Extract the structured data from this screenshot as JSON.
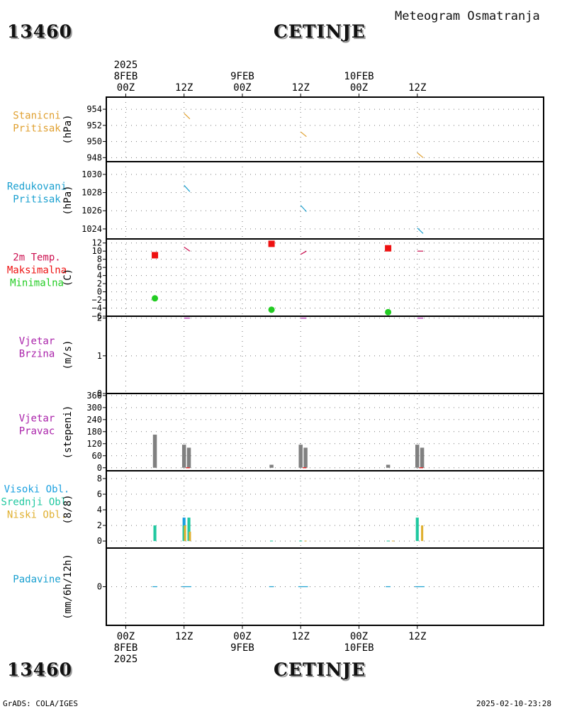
{
  "header": {
    "station_id": "13460",
    "station_name": "CETINJE",
    "meteogram_title": "Meteogram Osmatranja"
  },
  "footer": {
    "station_id": "13460",
    "station_name": "CETINJE",
    "credit": "GrADS: COLA/IGES",
    "timestamp": "2025-02-10-23:28"
  },
  "colors": {
    "station_pressure": "#e0a030",
    "reduced_pressure": "#1aa0d0",
    "temp": "#cc1050",
    "tmax": "#ee1111",
    "tmin": "#22cc22",
    "wind": "#aa22aa",
    "high_cloud": "#1aa0e0",
    "mid_cloud": "#20c8a0",
    "low_cloud": "#e0b030",
    "precip": "#1aa0d0",
    "grey_bar": "#808080"
  },
  "chart_data": {
    "type": "line",
    "x_axis": {
      "unit": "hours since 8FEB2025 00Z",
      "range": [
        -4,
        86
      ],
      "ticks": [
        {
          "x": 0,
          "top": [
            "2025",
            "8FEB",
            "00Z"
          ],
          "bottom": [
            "00Z",
            "8FEB",
            "2025"
          ]
        },
        {
          "x": 12,
          "top": [
            "12Z"
          ],
          "bottom": [
            "12Z"
          ]
        },
        {
          "x": 24,
          "top": [
            "9FEB",
            "00Z"
          ],
          "bottom": [
            "00Z",
            "9FEB"
          ]
        },
        {
          "x": 36,
          "top": [
            "12Z"
          ],
          "bottom": [
            "12Z"
          ]
        },
        {
          "x": 48,
          "top": [
            "10FEB",
            "00Z"
          ],
          "bottom": [
            "00Z",
            "10FEB"
          ]
        },
        {
          "x": 60,
          "top": [
            "12Z"
          ],
          "bottom": [
            "12Z"
          ]
        }
      ]
    },
    "panels": [
      {
        "id": "station_pressure",
        "label": [
          "Stanicni",
          "Pritisak"
        ],
        "label_colors": [
          "station_pressure",
          "station_pressure"
        ],
        "unit": "(hPa)",
        "ylim": [
          947.5,
          955.5
        ],
        "yticks": [
          "954",
          "952",
          "950",
          "948"
        ],
        "ytick_values": [
          954,
          952,
          950,
          948
        ],
        "series": [
          {
            "color": "station_pressure",
            "segments": [
              [
                [
                  12,
                  953.5
                ],
                [
                  13.2,
                  952.8
                ]
              ],
              [
                [
                  36,
                  951.2
                ],
                [
                  37.2,
                  950.6
                ]
              ],
              [
                [
                  60,
                  948.6
                ],
                [
                  61.2,
                  948
                ]
              ]
            ]
          }
        ]
      },
      {
        "id": "reduced_pressure",
        "label": [
          "Redukovani",
          "Pritisak"
        ],
        "label_colors": [
          "reduced_pressure",
          "reduced_pressure"
        ],
        "unit": "(hPa)",
        "ylim": [
          1022.9,
          1031.4
        ],
        "yticks": [
          "1030",
          "1028",
          "1026",
          "1024"
        ],
        "ytick_values": [
          1030,
          1028,
          1026,
          1024
        ],
        "series": [
          {
            "color": "reduced_pressure",
            "segments": [
              [
                [
                  12,
                  1028.8
                ],
                [
                  13.2,
                  1028.1
                ]
              ],
              [
                [
                  36,
                  1026.6
                ],
                [
                  37.2,
                  1025.9
                ]
              ],
              [
                [
                  60,
                  1024.1
                ],
                [
                  61.2,
                  1023.5
                ]
              ]
            ]
          }
        ]
      },
      {
        "id": "temperature",
        "label": [
          "2m Temp.",
          "Maksimalna",
          "Minimalna"
        ],
        "label_colors": [
          "temp",
          "tmax",
          "tmin"
        ],
        "unit": "(C)",
        "ylim": [
          -6,
          13
        ],
        "yticks": [
          "12",
          "10",
          "8",
          "6",
          "4",
          "2",
          "0",
          "−2",
          "−4",
          "−6"
        ],
        "ytick_values": [
          12,
          10,
          8,
          6,
          4,
          2,
          0,
          -2,
          -4,
          -6
        ],
        "series": [
          {
            "color": "temp",
            "segments": [
              [
                [
                  12,
                  11
                ],
                [
                  13.2,
                  10
                ]
              ],
              [
                [
                  36,
                  9.2
                ],
                [
                  37.2,
                  10
                ]
              ],
              [
                [
                  60,
                  10
                ],
                [
                  61.2,
                  10
                ]
              ]
            ]
          }
        ],
        "markers": [
          {
            "shape": "square",
            "color": "tmax",
            "points": [
              [
                6,
                9
              ],
              [
                30,
                11.8
              ],
              [
                54,
                10.7
              ]
            ]
          },
          {
            "shape": "circle",
            "color": "tmin",
            "points": [
              [
                6,
                -1.6
              ],
              [
                30,
                -4.4
              ],
              [
                54,
                -5
              ]
            ]
          }
        ]
      },
      {
        "id": "wind_speed",
        "label": [
          "Vjetar",
          "Brzina"
        ],
        "label_colors": [
          "wind",
          "wind"
        ],
        "unit": "(m/s)",
        "ylim": [
          0,
          2.05
        ],
        "yticks": [
          "2",
          "1",
          "0"
        ],
        "ytick_values": [
          2,
          1,
          0
        ],
        "series": [
          {
            "color": "wind",
            "segments": [
              [
                [
                  12,
                  2
                ],
                [
                  13.2,
                  2
                ]
              ],
              [
                [
                  36,
                  2
                ],
                [
                  37.2,
                  2
                ]
              ],
              [
                [
                  60,
                  2
                ],
                [
                  61.2,
                  2
                ]
              ]
            ]
          }
        ]
      },
      {
        "id": "wind_direction",
        "label": [
          "Vjetar",
          "Pravac"
        ],
        "label_colors": [
          "wind",
          "wind"
        ],
        "unit": "(stepeni)",
        "ylim": [
          -15,
          370
        ],
        "yticks": [
          "360",
          "300",
          "240",
          "180",
          "120",
          "60",
          "0"
        ],
        "ytick_values": [
          360,
          300,
          240,
          180,
          120,
          60,
          0
        ],
        "bars": [
          {
            "color": "grey_bar",
            "width": 0.8,
            "items": [
              [
                6,
                165
              ],
              [
                12,
                115
              ],
              [
                13,
                100
              ],
              [
                30,
                15
              ],
              [
                36,
                115
              ],
              [
                37,
                100
              ],
              [
                54,
                15
              ],
              [
                60,
                115
              ],
              [
                61,
                100
              ]
            ]
          }
        ],
        "series": [
          {
            "color": "tmax",
            "segments": [
              [
                [
                  12.4,
                  0
                ],
                [
                  13.2,
                  0
                ]
              ],
              [
                [
                  36.4,
                  0
                ],
                [
                  37.2,
                  0
                ]
              ],
              [
                [
                  60.4,
                  0
                ],
                [
                  61.2,
                  0
                ]
              ]
            ]
          }
        ]
      },
      {
        "id": "clouds",
        "label": [
          "Visoki Obl.",
          "Srednji Obl.",
          "Niski Obl."
        ],
        "label_colors": [
          "high_cloud",
          "mid_cloud",
          "low_cloud"
        ],
        "unit": "(8/8)",
        "ylim": [
          -0.9,
          9
        ],
        "yticks": [
          "8",
          "6",
          "4",
          "2",
          "0"
        ],
        "ytick_values": [
          8,
          6,
          4,
          2,
          0
        ],
        "bars": [
          {
            "color": "high_cloud",
            "width": 0.6,
            "items": [
              [
                12,
                3
              ]
            ]
          },
          {
            "color": "mid_cloud",
            "width": 0.6,
            "items": [
              [
                6,
                2
              ],
              [
                12,
                2
              ],
              [
                13,
                3
              ],
              [
                30,
                0.05
              ],
              [
                36,
                0.05
              ],
              [
                54,
                0.05
              ],
              [
                60,
                3
              ]
            ]
          },
          {
            "color": "low_cloud",
            "width": 0.45,
            "items": [
              [
                12.2,
                2
              ],
              [
                13.2,
                1.2
              ],
              [
                61,
                2
              ],
              [
                37,
                0.05
              ],
              [
                55,
                0.05
              ]
            ]
          }
        ]
      },
      {
        "id": "precip",
        "label": [
          "Padavine"
        ],
        "label_colors": [
          "precip"
        ],
        "unit": "(mm/6h/12h)",
        "ylim": [
          -3,
          3
        ],
        "yticks": [
          "0"
        ],
        "ytick_values": [
          0
        ],
        "series": [
          {
            "color": "precip",
            "segments": [
              [
                [
                  5.5,
                  0
                ],
                [
                  6.5,
                  0
                ]
              ],
              [
                [
                  11.5,
                  0
                ],
                [
                  13.5,
                  0
                ]
              ],
              [
                [
                  29.5,
                  0
                ],
                [
                  30.5,
                  0
                ]
              ],
              [
                [
                  35.5,
                  0
                ],
                [
                  37.5,
                  0
                ]
              ],
              [
                [
                  53.5,
                  0
                ],
                [
                  54.5,
                  0
                ]
              ],
              [
                [
                  59.5,
                  0
                ],
                [
                  61.5,
                  0
                ]
              ]
            ]
          }
        ]
      }
    ]
  }
}
